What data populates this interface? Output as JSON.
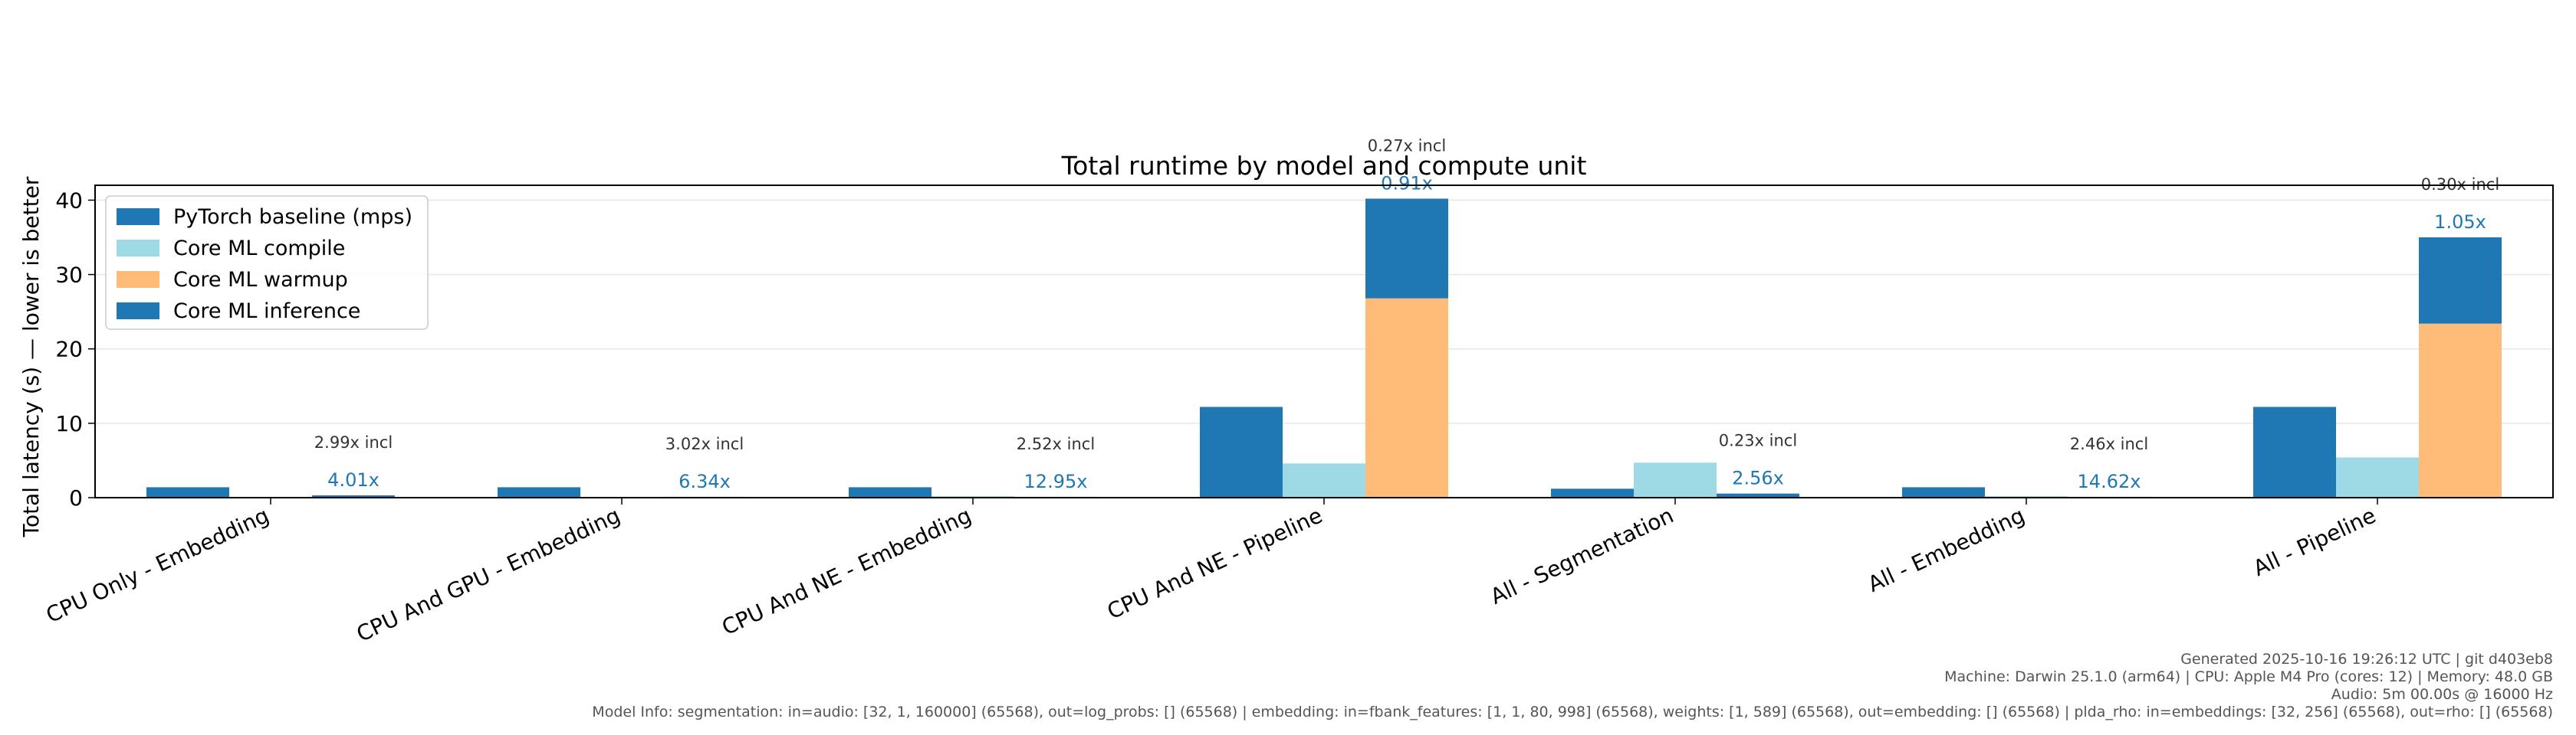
{
  "chart_data": {
    "type": "bar",
    "title": "Total runtime by model and compute unit",
    "xlabel": "",
    "ylabel": "Total latency (s) — lower is better",
    "ylim": [
      0,
      42
    ],
    "yticks": [
      0,
      10,
      20,
      30,
      40
    ],
    "grid": true,
    "legend_position": "top-left",
    "categories": [
      "CPU Only - Embedding",
      "CPU And GPU - Embedding",
      "CPU And NE - Embedding",
      "CPU And NE - Pipeline",
      "All - Segmentation",
      "All - Embedding",
      "All - Pipeline"
    ],
    "series": [
      {
        "name": "PyTorch baseline (mps)",
        "color": "#1f77b4",
        "values": [
          1.4,
          1.4,
          1.4,
          12.2,
          1.2,
          1.4,
          12.2
        ]
      },
      {
        "name": "Core ML compile",
        "color": "#9edae5",
        "values": [
          0.1,
          0.1,
          0.2,
          4.6,
          4.7,
          0.2,
          5.4
        ]
      },
      {
        "name": "Core ML warmup",
        "color": "#ffbb78",
        "values": [
          0.01,
          0.01,
          0.01,
          26.8,
          0.05,
          0.01,
          23.4
        ]
      },
      {
        "name": "Core ML inference",
        "color": "#1f77b4",
        "values": [
          0.3,
          0.1,
          0.1,
          13.4,
          0.5,
          0.1,
          11.6
        ]
      }
    ],
    "annotations": {
      "speedup": [
        "4.01x",
        "6.34x",
        "12.95x",
        "0.91x",
        "2.56x",
        "14.62x",
        "1.05x"
      ],
      "incl": [
        "2.99x incl",
        "3.02x incl",
        "2.52x incl",
        "0.27x incl",
        "0.23x incl",
        "2.46x incl",
        "0.30x incl"
      ]
    }
  },
  "footer": {
    "generated": "Generated 2025-10-16 19:26:12 UTC | git d403eb8",
    "machine": "Machine: Darwin 25.1.0 (arm64) | CPU: Apple M4 Pro (cores: 12) | Memory: 48.0 GB",
    "audio": "Audio: 5m 00.00s @ 16000 Hz",
    "model_info": "Model Info: segmentation: in=audio: [32, 1, 160000] (65568), out=log_probs: [] (65568) | embedding: in=fbank_features: [1, 1, 80, 998] (65568), weights: [1, 589] (65568), out=embedding: [] (65568) | plda_rho: in=embeddings: [32, 256] (65568), out=rho: [] (65568)"
  }
}
